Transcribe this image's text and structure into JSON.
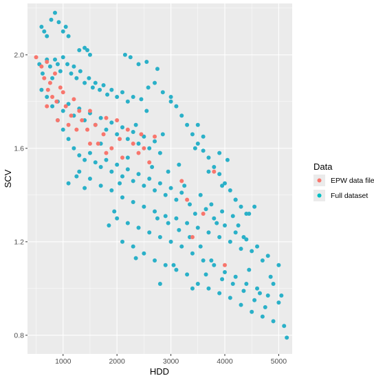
{
  "chart_data": {
    "type": "scatter",
    "title": "",
    "xlabel": "HDD",
    "ylabel": "SCV",
    "xlim": [
      340,
      5250
    ],
    "ylim": [
      0.72,
      2.22
    ],
    "x_ticks": [
      1000,
      2000,
      3000,
      4000,
      5000
    ],
    "x_tick_labels": [
      "1000",
      "2000",
      "3000",
      "4000",
      "5000"
    ],
    "y_ticks": [
      0.8,
      1.2,
      1.6,
      2.0
    ],
    "y_tick_labels": [
      "0.8",
      "1.2",
      "1.6",
      "2.0"
    ],
    "grid": true,
    "background": "#ebebeb",
    "legend": {
      "title": "Data",
      "position": "right",
      "entries": [
        {
          "label": "EPW data file",
          "color": "#F8766D"
        },
        {
          "label": "Full dataset",
          "color": "#00BFC4"
        }
      ]
    },
    "series": [
      {
        "name": "Full dataset",
        "color": "#00BFC4",
        "point_color": "#2ab0c8",
        "points": [
          [
            600,
            2.12
          ],
          [
            650,
            2.1
          ],
          [
            700,
            2.08
          ],
          [
            780,
            2.15
          ],
          [
            850,
            2.18
          ],
          [
            920,
            2.14
          ],
          [
            1000,
            2.1
          ],
          [
            1050,
            2.12
          ],
          [
            1100,
            2.08
          ],
          [
            1300,
            2.02
          ],
          [
            1400,
            2.03
          ],
          [
            1450,
            2.02
          ],
          [
            1500,
            2.0
          ],
          [
            2150,
            2.0
          ],
          [
            2250,
            1.99
          ],
          [
            2400,
            1.96
          ],
          [
            2550,
            1.97
          ],
          [
            2750,
            1.94
          ],
          [
            560,
            1.96
          ],
          [
            620,
            1.92
          ],
          [
            700,
            1.98
          ],
          [
            760,
            1.95
          ],
          [
            800,
            1.9
          ],
          [
            850,
            1.98
          ],
          [
            900,
            1.96
          ],
          [
            950,
            1.93
          ],
          [
            1000,
            1.99
          ],
          [
            1080,
            1.96
          ],
          [
            1150,
            1.92
          ],
          [
            1200,
            1.95
          ],
          [
            1250,
            1.9
          ],
          [
            1320,
            1.93
          ],
          [
            1400,
            1.88
          ],
          [
            1480,
            1.9
          ],
          [
            1550,
            1.86
          ],
          [
            1600,
            1.88
          ],
          [
            1680,
            1.85
          ],
          [
            1750,
            1.87
          ],
          [
            1820,
            1.83
          ],
          [
            1900,
            1.85
          ],
          [
            2000,
            1.82
          ],
          [
            2100,
            1.84
          ],
          [
            2200,
            1.8
          ],
          [
            2300,
            1.82
          ],
          [
            2450,
            1.81
          ],
          [
            2580,
            1.86
          ],
          [
            2700,
            1.88
          ],
          [
            2850,
            1.84
          ],
          [
            3000,
            1.8
          ],
          [
            600,
            1.85
          ],
          [
            700,
            1.82
          ],
          [
            800,
            1.78
          ],
          [
            900,
            1.8
          ],
          [
            1000,
            1.76
          ],
          [
            1100,
            1.79
          ],
          [
            1200,
            1.74
          ],
          [
            1300,
            1.77
          ],
          [
            1400,
            1.72
          ],
          [
            1500,
            1.75
          ],
          [
            1600,
            1.7
          ],
          [
            1700,
            1.73
          ],
          [
            1800,
            1.68
          ],
          [
            1900,
            1.71
          ],
          [
            2000,
            1.66
          ],
          [
            2100,
            1.69
          ],
          [
            2200,
            1.64
          ],
          [
            2300,
            1.67
          ],
          [
            2400,
            1.62
          ],
          [
            2500,
            1.65
          ],
          [
            2600,
            1.6
          ],
          [
            2700,
            1.63
          ],
          [
            2800,
            1.58
          ],
          [
            900,
            1.72
          ],
          [
            1000,
            1.68
          ],
          [
            1100,
            1.64
          ],
          [
            1200,
            1.6
          ],
          [
            1300,
            1.57
          ],
          [
            1400,
            1.55
          ],
          [
            1500,
            1.58
          ],
          [
            1600,
            1.54
          ],
          [
            1700,
            1.52
          ],
          [
            1800,
            1.55
          ],
          [
            1900,
            1.5
          ],
          [
            2000,
            1.53
          ],
          [
            2100,
            1.48
          ],
          [
            2200,
            1.51
          ],
          [
            2300,
            1.46
          ],
          [
            2400,
            1.49
          ],
          [
            2500,
            1.44
          ],
          [
            2600,
            1.47
          ],
          [
            2700,
            1.42
          ],
          [
            2800,
            1.45
          ],
          [
            2900,
            1.4
          ],
          [
            3000,
            1.43
          ],
          [
            3100,
            1.38
          ],
          [
            3200,
            1.41
          ],
          [
            1100,
            1.45
          ],
          [
            1300,
            1.5
          ],
          [
            1500,
            1.47
          ],
          [
            1700,
            1.44
          ],
          [
            1900,
            1.42
          ],
          [
            2100,
            1.39
          ],
          [
            2300,
            1.37
          ],
          [
            2500,
            1.35
          ],
          [
            2700,
            1.33
          ],
          [
            2900,
            1.31
          ],
          [
            3100,
            1.3
          ],
          [
            3300,
            1.28
          ],
          [
            3500,
            1.26
          ],
          [
            3700,
            1.24
          ],
          [
            3900,
            1.22
          ],
          [
            4100,
            1.2
          ],
          [
            4300,
            1.17
          ],
          [
            2000,
            1.3
          ],
          [
            2200,
            1.28
          ],
          [
            2400,
            1.26
          ],
          [
            2600,
            1.24
          ],
          [
            2800,
            1.22
          ],
          [
            3000,
            1.2
          ],
          [
            3200,
            1.18
          ],
          [
            3400,
            1.15
          ],
          [
            3600,
            1.12
          ],
          [
            3800,
            1.1
          ],
          [
            4000,
            1.07
          ],
          [
            4200,
            1.05
          ],
          [
            4400,
            1.02
          ],
          [
            4600,
            1.0
          ],
          [
            4800,
            0.97
          ],
          [
            5000,
            0.94
          ],
          [
            2300,
            1.18
          ],
          [
            2500,
            1.15
          ],
          [
            2700,
            1.12
          ],
          [
            2900,
            1.1
          ],
          [
            3100,
            1.08
          ],
          [
            3300,
            1.06
          ],
          [
            3500,
            1.02
          ],
          [
            3700,
            1.0
          ],
          [
            3900,
            0.98
          ],
          [
            4100,
            0.96
          ],
          [
            4300,
            0.93
          ],
          [
            4500,
            0.9
          ],
          [
            4700,
            0.88
          ],
          [
            4900,
            0.86
          ],
          [
            5100,
            0.84
          ],
          [
            5150,
            0.79
          ],
          [
            3000,
            1.82
          ],
          [
            3100,
            1.78
          ],
          [
            3200,
            1.74
          ],
          [
            3300,
            1.7
          ],
          [
            3400,
            1.66
          ],
          [
            3500,
            1.62
          ],
          [
            3600,
            1.59
          ],
          [
            3700,
            1.56
          ],
          [
            3800,
            1.52
          ],
          [
            3900,
            1.49
          ],
          [
            4000,
            1.45
          ],
          [
            4100,
            1.42
          ],
          [
            4200,
            1.38
          ],
          [
            4300,
            1.35
          ],
          [
            4400,
            1.32
          ],
          [
            4550,
            1.35
          ],
          [
            3450,
            1.6
          ],
          [
            3700,
            1.5
          ],
          [
            3950,
            1.44
          ],
          [
            4200,
            1.38
          ],
          [
            4450,
            1.32
          ],
          [
            3800,
            1.3
          ],
          [
            4000,
            1.27
          ],
          [
            4200,
            1.24
          ],
          [
            4400,
            1.21
          ],
          [
            4600,
            1.18
          ],
          [
            4800,
            1.14
          ],
          [
            5000,
            1.1
          ],
          [
            3500,
            1.7
          ],
          [
            3600,
            1.65
          ],
          [
            3900,
            1.58
          ],
          [
            4050,
            1.55
          ],
          [
            1250,
            1.48
          ],
          [
            1400,
            1.43
          ],
          [
            1700,
            1.62
          ],
          [
            2800,
            1.02
          ],
          [
            3050,
            1.1
          ],
          [
            3400,
            1.0
          ],
          [
            3650,
            1.06
          ],
          [
            4450,
            1.08
          ],
          [
            4650,
            0.98
          ],
          [
            4850,
            1.05
          ],
          [
            2350,
            1.13
          ],
          [
            2100,
            1.2
          ],
          [
            1850,
            1.27
          ],
          [
            1950,
            1.33
          ],
          [
            2050,
            1.45
          ],
          [
            2200,
            1.56
          ],
          [
            2350,
            1.7
          ],
          [
            2550,
            1.76
          ],
          [
            2650,
            1.52
          ],
          [
            2850,
            1.66
          ],
          [
            2950,
            1.5
          ],
          [
            3150,
            1.53
          ],
          [
            3250,
            1.44
          ],
          [
            3350,
            1.36
          ],
          [
            3450,
            1.32
          ],
          [
            3550,
            1.4
          ],
          [
            3650,
            1.34
          ],
          [
            3750,
            1.36
          ],
          [
            3850,
            1.28
          ],
          [
            3950,
            1.33
          ],
          [
            4150,
            1.31
          ],
          [
            4250,
            1.27
          ],
          [
            4350,
            1.22
          ],
          [
            4500,
            1.16
          ],
          [
            4700,
            1.12
          ],
          [
            4900,
            1.02
          ],
          [
            5050,
            0.97
          ],
          [
            4750,
            0.92
          ],
          [
            4550,
            0.95
          ],
          [
            4350,
            0.99
          ],
          [
            4150,
            1.02
          ],
          [
            3950,
            1.04
          ],
          [
            3750,
            1.12
          ],
          [
            3550,
            1.18
          ],
          [
            3350,
            1.22
          ],
          [
            3150,
            1.25
          ],
          [
            2950,
            1.28
          ],
          [
            2750,
            1.3
          ]
        ]
      },
      {
        "name": "EPW data file",
        "color": "#F8766D",
        "point_color": "#F8766D",
        "points": [
          [
            500,
            1.99
          ],
          [
            600,
            1.95
          ],
          [
            650,
            1.9
          ],
          [
            700,
            1.97
          ],
          [
            720,
            1.85
          ],
          [
            760,
            1.88
          ],
          [
            800,
            1.82
          ],
          [
            850,
            1.92
          ],
          [
            880,
            1.8
          ],
          [
            950,
            1.86
          ],
          [
            1000,
            1.84
          ],
          [
            1050,
            1.78
          ],
          [
            1150,
            1.74
          ],
          [
            1200,
            1.81
          ],
          [
            1300,
            1.76
          ],
          [
            1350,
            1.72
          ],
          [
            1450,
            1.68
          ],
          [
            1500,
            1.76
          ],
          [
            1600,
            1.7
          ],
          [
            1650,
            1.62
          ],
          [
            1750,
            1.66
          ],
          [
            1800,
            1.73
          ],
          [
            1900,
            1.6
          ],
          [
            2000,
            1.72
          ],
          [
            2050,
            1.64
          ],
          [
            2100,
            1.56
          ],
          [
            2200,
            1.68
          ],
          [
            2300,
            1.62
          ],
          [
            2400,
            1.58
          ],
          [
            2450,
            1.66
          ],
          [
            2500,
            1.6
          ],
          [
            2600,
            1.54
          ],
          [
            2700,
            1.65
          ],
          [
            700,
            1.78
          ],
          [
            1250,
            1.68
          ],
          [
            1800,
            1.58
          ],
          [
            1500,
            1.62
          ],
          [
            3800,
            1.5
          ],
          [
            3200,
            1.46
          ],
          [
            3300,
            1.38
          ],
          [
            3600,
            1.32
          ],
          [
            4000,
            1.1
          ],
          [
            3400,
            1.22
          ],
          [
            900,
            1.72
          ],
          [
            1100,
            1.7
          ]
        ]
      }
    ]
  }
}
